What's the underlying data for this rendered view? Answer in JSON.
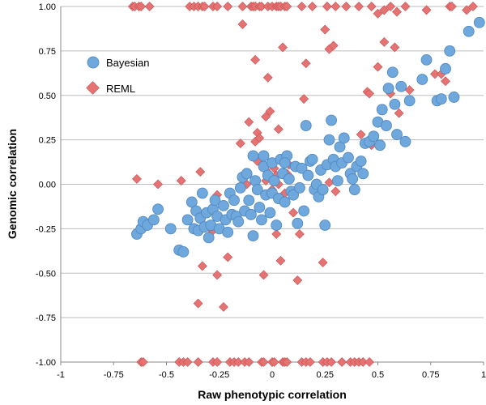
{
  "chart_data": {
    "type": "scatter",
    "xlabel": "Raw phenotypic correlation",
    "ylabel": "Genomic correlation",
    "xlim": [
      -1,
      1
    ],
    "ylim": [
      -1,
      1
    ],
    "x_ticks": [
      "-1",
      "-0.75",
      "-0.5",
      "-0.25",
      "0",
      "0.25",
      "0.5",
      "0.75",
      "1"
    ],
    "y_ticks": [
      "1.00",
      "0.75",
      "0.50",
      "0.25",
      "0.00",
      "-0.25",
      "-0.50",
      "-0.75",
      "-1.00"
    ],
    "grid": "horizontal",
    "legend_placement": "left",
    "series": [
      {
        "name": "Bayesian",
        "color": "#6fa8dc",
        "marker": "circle",
        "points": [
          [
            -0.64,
            -0.28
          ],
          [
            -0.62,
            -0.25
          ],
          [
            -0.61,
            -0.21
          ],
          [
            -0.59,
            -0.23
          ],
          [
            -0.56,
            -0.2
          ],
          [
            -0.54,
            -0.14
          ],
          [
            -0.48,
            -0.25
          ],
          [
            -0.44,
            -0.37
          ],
          [
            -0.42,
            -0.38
          ],
          [
            -0.4,
            -0.2
          ],
          [
            -0.38,
            -0.1
          ],
          [
            -0.37,
            -0.25
          ],
          [
            -0.36,
            -0.15
          ],
          [
            -0.35,
            -0.26
          ],
          [
            -0.34,
            -0.19
          ],
          [
            -0.33,
            -0.05
          ],
          [
            -0.32,
            -0.24
          ],
          [
            -0.31,
            -0.16
          ],
          [
            -0.3,
            -0.3
          ],
          [
            -0.29,
            -0.23
          ],
          [
            -0.28,
            -0.14
          ],
          [
            -0.27,
            -0.09
          ],
          [
            -0.26,
            -0.18
          ],
          [
            -0.25,
            -0.25
          ],
          [
            -0.23,
            -0.12
          ],
          [
            -0.22,
            -0.2
          ],
          [
            -0.21,
            -0.27
          ],
          [
            -0.2,
            -0.05
          ],
          [
            -0.19,
            -0.17
          ],
          [
            -0.18,
            -0.09
          ],
          [
            -0.17,
            -0.18
          ],
          [
            -0.16,
            -0.21
          ],
          [
            -0.15,
            -0.02
          ],
          [
            -0.14,
            0.04
          ],
          [
            -0.13,
            -0.15
          ],
          [
            -0.12,
            0.06
          ],
          [
            -0.11,
            -0.09
          ],
          [
            -0.1,
            -0.17
          ],
          [
            -0.09,
            0.16
          ],
          [
            -0.09,
            -0.29
          ],
          [
            -0.08,
            0.02
          ],
          [
            -0.07,
            -0.03
          ],
          [
            -0.06,
            -0.13
          ],
          [
            -0.05,
            -0.2
          ],
          [
            -0.04,
            0.1
          ],
          [
            -0.03,
            -0.06
          ],
          [
            -0.02,
            0.05
          ],
          [
            -0.01,
            -0.16
          ],
          [
            0.0,
            0.12
          ],
          [
            0.0,
            -0.05
          ],
          [
            0.01,
            0.02
          ],
          [
            0.02,
            -0.23
          ],
          [
            0.03,
            -0.08
          ],
          [
            0.04,
            0.14
          ],
          [
            0.05,
            0.06
          ],
          [
            0.06,
            -0.1
          ],
          [
            0.07,
            0.16
          ],
          [
            0.08,
            0.03
          ],
          [
            0.09,
            -0.04
          ],
          [
            0.1,
            -0.06
          ],
          [
            0.11,
            0.1
          ],
          [
            0.12,
            -0.22
          ],
          [
            0.13,
            -0.02
          ],
          [
            0.14,
            0.09
          ],
          [
            0.15,
            -0.15
          ],
          [
            0.16,
            0.33
          ],
          [
            0.17,
            0.05
          ],
          [
            0.18,
            0.13
          ],
          [
            0.19,
            0.14
          ],
          [
            0.2,
            -0.03
          ],
          [
            0.21,
            0.0
          ],
          [
            0.22,
            -0.07
          ],
          [
            0.23,
            0.08
          ],
          [
            0.24,
            -0.03
          ],
          [
            0.25,
            -0.23
          ],
          [
            0.26,
            0.11
          ],
          [
            0.27,
            0.25
          ],
          [
            0.28,
            0.36
          ],
          [
            0.29,
            0.14
          ],
          [
            0.3,
            0.1
          ],
          [
            0.31,
            0.02
          ],
          [
            0.32,
            0.21
          ],
          [
            0.33,
            0.12
          ],
          [
            0.34,
            0.26
          ],
          [
            0.36,
            0.15
          ],
          [
            0.37,
            0.06
          ],
          [
            0.38,
            0.03
          ],
          [
            0.39,
            -0.03
          ],
          [
            0.4,
            0.1
          ],
          [
            0.42,
            0.13
          ],
          [
            0.43,
            0.06
          ],
          [
            0.44,
            0.23
          ],
          [
            0.46,
            0.24
          ],
          [
            0.48,
            0.27
          ],
          [
            0.5,
            0.35
          ],
          [
            0.51,
            0.22
          ],
          [
            0.52,
            0.42
          ],
          [
            0.54,
            0.33
          ],
          [
            0.55,
            0.54
          ],
          [
            0.57,
            0.63
          ],
          [
            0.58,
            0.45
          ],
          [
            0.59,
            0.28
          ],
          [
            0.61,
            0.55
          ],
          [
            0.63,
            0.24
          ],
          [
            0.65,
            0.47
          ],
          [
            0.71,
            0.59
          ],
          [
            0.73,
            0.7
          ],
          [
            0.78,
            0.47
          ],
          [
            0.8,
            0.48
          ],
          [
            0.82,
            0.65
          ],
          [
            0.84,
            0.75
          ],
          [
            0.86,
            0.49
          ],
          [
            0.93,
            0.86
          ],
          [
            0.98,
            0.91
          ],
          [
            -0.04,
            0.16
          ],
          [
            0.06,
            0.12
          ]
        ]
      },
      {
        "name": "REML",
        "color": "#e57373",
        "marker": "diamond",
        "points": [
          [
            -0.66,
            1.0
          ],
          [
            -0.65,
            1.0
          ],
          [
            -0.63,
            1.0
          ],
          [
            -0.62,
            1.0
          ],
          [
            -0.58,
            1.0
          ],
          [
            -0.39,
            1.0
          ],
          [
            -0.37,
            1.0
          ],
          [
            -0.35,
            1.0
          ],
          [
            -0.33,
            1.0
          ],
          [
            -0.32,
            1.0
          ],
          [
            -0.28,
            1.0
          ],
          [
            -0.26,
            1.0
          ],
          [
            -0.21,
            1.0
          ],
          [
            -0.14,
            1.0
          ],
          [
            -0.1,
            1.0
          ],
          [
            -0.09,
            1.0
          ],
          [
            -0.08,
            1.0
          ],
          [
            -0.06,
            1.0
          ],
          [
            -0.05,
            1.0
          ],
          [
            -0.02,
            1.0
          ],
          [
            0.0,
            1.0
          ],
          [
            0.02,
            1.0
          ],
          [
            0.03,
            1.0
          ],
          [
            0.04,
            1.0
          ],
          [
            0.06,
            1.0
          ],
          [
            0.07,
            1.0
          ],
          [
            0.14,
            1.0
          ],
          [
            0.19,
            1.0
          ],
          [
            0.26,
            1.0
          ],
          [
            0.3,
            1.0
          ],
          [
            0.35,
            1.0
          ],
          [
            0.41,
            1.0
          ],
          [
            0.47,
            1.0
          ],
          [
            0.5,
            0.96
          ],
          [
            0.53,
            0.98
          ],
          [
            0.56,
            1.0
          ],
          [
            0.59,
            0.97
          ],
          [
            0.63,
            1.0
          ],
          [
            0.73,
            0.98
          ],
          [
            0.84,
            1.0
          ],
          [
            0.85,
            1.0
          ],
          [
            0.92,
            0.98
          ],
          [
            0.95,
            1.0
          ],
          [
            -0.62,
            -1.0
          ],
          [
            -0.61,
            -1.0
          ],
          [
            -0.44,
            -1.0
          ],
          [
            -0.42,
            -1.0
          ],
          [
            -0.4,
            -1.0
          ],
          [
            -0.35,
            -1.0
          ],
          [
            -0.28,
            -1.0
          ],
          [
            -0.26,
            -1.0
          ],
          [
            -0.2,
            -1.0
          ],
          [
            -0.18,
            -1.0
          ],
          [
            -0.16,
            -1.0
          ],
          [
            -0.13,
            -1.0
          ],
          [
            -0.11,
            -1.0
          ],
          [
            -0.05,
            -1.0
          ],
          [
            -0.04,
            -1.0
          ],
          [
            0.0,
            -1.0
          ],
          [
            0.01,
            -1.0
          ],
          [
            0.05,
            -1.0
          ],
          [
            0.06,
            -1.0
          ],
          [
            0.07,
            -1.0
          ],
          [
            0.14,
            -1.0
          ],
          [
            0.16,
            -1.0
          ],
          [
            0.18,
            -1.0
          ],
          [
            0.24,
            -1.0
          ],
          [
            0.26,
            -1.0
          ],
          [
            0.28,
            -1.0
          ],
          [
            0.33,
            -1.0
          ],
          [
            0.37,
            -1.0
          ],
          [
            0.39,
            -1.0
          ],
          [
            0.41,
            -1.0
          ],
          [
            0.43,
            -1.0
          ],
          [
            0.46,
            -1.0
          ],
          [
            -0.64,
            0.03
          ],
          [
            -0.54,
            0.0
          ],
          [
            -0.43,
            0.02
          ],
          [
            -0.34,
            0.07
          ],
          [
            -0.3,
            -0.29
          ],
          [
            -0.28,
            -0.26
          ],
          [
            -0.26,
            -0.06
          ],
          [
            -0.26,
            -0.51
          ],
          [
            -0.21,
            -0.41
          ],
          [
            -0.23,
            -0.69
          ],
          [
            -0.35,
            -0.67
          ],
          [
            -0.33,
            -0.46
          ],
          [
            -0.15,
            0.23
          ],
          [
            -0.14,
            0.9
          ],
          [
            -0.11,
            0.35
          ],
          [
            -0.08,
            0.24
          ],
          [
            -0.08,
            0.7
          ],
          [
            -0.07,
            0.29
          ],
          [
            -0.06,
            0.26
          ],
          [
            -0.05,
            0.14
          ],
          [
            -0.04,
            -0.51
          ],
          [
            -0.03,
            0.08
          ],
          [
            -0.03,
            0.02
          ],
          [
            -0.02,
            0.6
          ],
          [
            -0.01,
            0.41
          ],
          [
            0.0,
            -0.03
          ],
          [
            0.01,
            0.09
          ],
          [
            0.02,
            -0.28
          ],
          [
            0.02,
            0.05
          ],
          [
            0.03,
            0.0
          ],
          [
            0.03,
            0.31
          ],
          [
            0.04,
            0.14
          ],
          [
            0.04,
            -0.43
          ],
          [
            0.05,
            0.77
          ],
          [
            0.06,
            -0.05
          ],
          [
            0.07,
            0.06
          ],
          [
            0.08,
            0.11
          ],
          [
            0.1,
            -0.16
          ],
          [
            0.12,
            -0.54
          ],
          [
            0.13,
            -0.28
          ],
          [
            0.15,
            0.48
          ],
          [
            0.16,
            0.68
          ],
          [
            0.25,
            0.87
          ],
          [
            -0.03,
            0.38
          ],
          [
            -0.07,
            0.13
          ],
          [
            -0.12,
            0.0
          ],
          [
            0.24,
            -0.44
          ],
          [
            0.27,
            0.01
          ],
          [
            0.27,
            0.76
          ],
          [
            0.29,
            0.78
          ],
          [
            0.3,
            -0.04
          ],
          [
            0.4,
            0.1
          ],
          [
            0.42,
            0.28
          ],
          [
            0.45,
            0.52
          ],
          [
            0.46,
            0.51
          ],
          [
            0.47,
            0.22
          ],
          [
            0.5,
            0.66
          ],
          [
            0.53,
            0.8
          ],
          [
            0.58,
            0.77
          ],
          [
            0.6,
            0.4
          ],
          [
            0.65,
            0.53
          ],
          [
            0.77,
            0.62
          ],
          [
            0.8,
            0.62
          ],
          [
            0.82,
            0.58
          ],
          [
            0.56,
            0.51
          ]
        ]
      }
    ]
  }
}
